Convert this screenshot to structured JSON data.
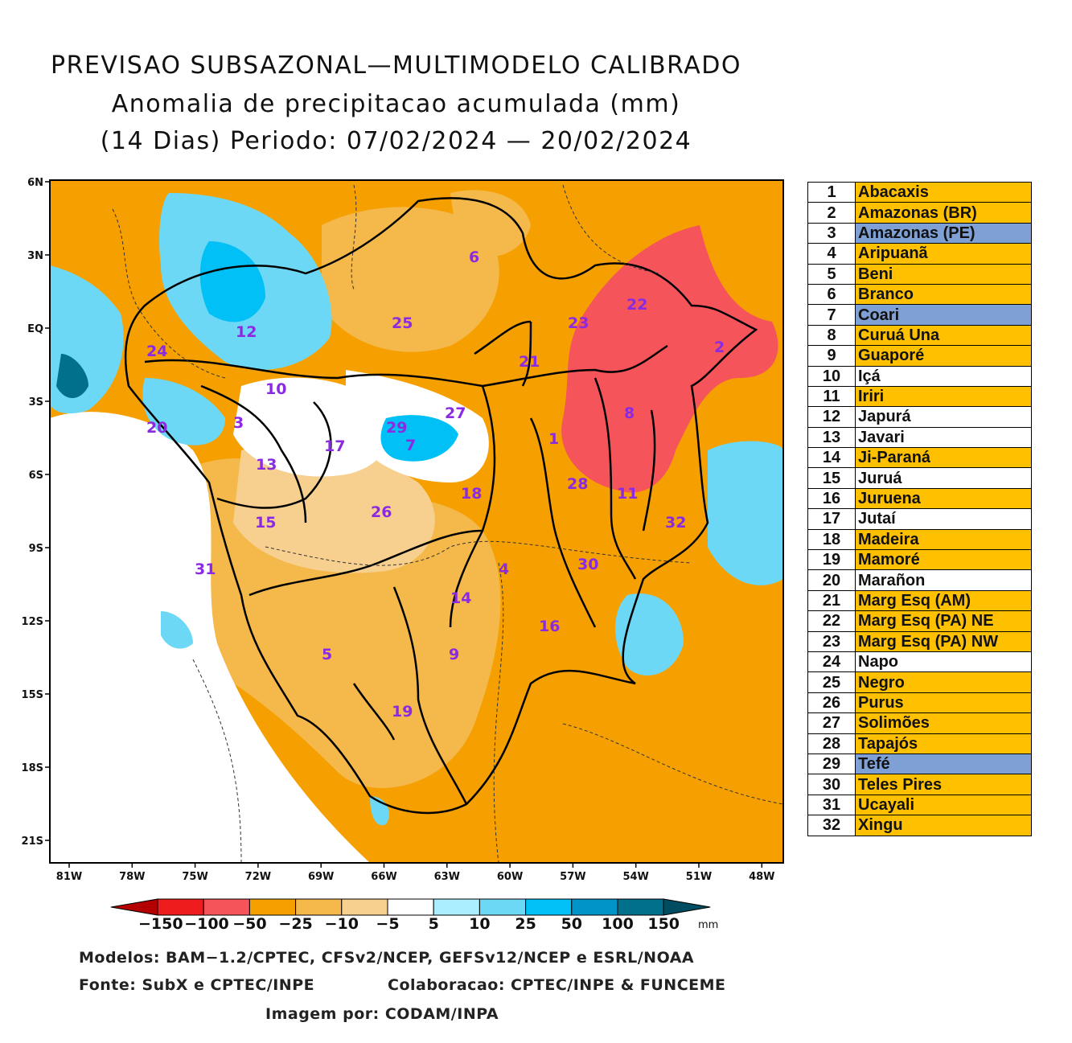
{
  "header": {
    "line1": "PREVISAO SUBSAZONAL—MULTIMODELO CALIBRADO",
    "line2": "Anomalia de precipitacao acumulada (mm)",
    "line3": "(14 Dias) Periodo: 07/02/2024 — 20/02/2024"
  },
  "axes": {
    "lat_labels": [
      "6N",
      "3N",
      "EQ",
      "3S",
      "6S",
      "9S",
      "12S",
      "15S",
      "18S",
      "21S"
    ],
    "lon_labels": [
      "81W",
      "78W",
      "75W",
      "72W",
      "69W",
      "66W",
      "63W",
      "60W",
      "57W",
      "54W",
      "51W",
      "48W"
    ]
  },
  "map_labels": [
    "1",
    "2",
    "3",
    "4",
    "5",
    "6",
    "7",
    "8",
    "9",
    "10",
    "11",
    "12",
    "13",
    "14",
    "15",
    "16",
    "17",
    "18",
    "19",
    "20",
    "21",
    "22",
    "23",
    "24",
    "25",
    "26",
    "27",
    "28",
    "29",
    "30",
    "31",
    "32"
  ],
  "legend": {
    "colors": {
      "orange": "#ffc000",
      "blue": "#7ea0d4",
      "white": "#ffffff"
    },
    "rows": [
      {
        "num": "1",
        "name": "Abacaxis",
        "color": "orange"
      },
      {
        "num": "2",
        "name": "Amazonas (BR)",
        "color": "orange"
      },
      {
        "num": "3",
        "name": "Amazonas (PE)",
        "color": "blue"
      },
      {
        "num": "4",
        "name": "Aripuanã",
        "color": "orange"
      },
      {
        "num": "5",
        "name": "Beni",
        "color": "orange"
      },
      {
        "num": "6",
        "name": "Branco",
        "color": "orange"
      },
      {
        "num": "7",
        "name": "Coari",
        "color": "blue"
      },
      {
        "num": "8",
        "name": "Curuá Una",
        "color": "orange"
      },
      {
        "num": "9",
        "name": "Guaporé",
        "color": "orange"
      },
      {
        "num": "10",
        "name": "Içá",
        "color": "white"
      },
      {
        "num": "11",
        "name": "Iriri",
        "color": "orange"
      },
      {
        "num": "12",
        "name": "Japurá",
        "color": "white"
      },
      {
        "num": "13",
        "name": "Javari",
        "color": "white"
      },
      {
        "num": "14",
        "name": "Ji-Paraná",
        "color": "orange"
      },
      {
        "num": "15",
        "name": "Juruá",
        "color": "white"
      },
      {
        "num": "16",
        "name": "Juruena",
        "color": "orange"
      },
      {
        "num": "17",
        "name": "Jutaí",
        "color": "white"
      },
      {
        "num": "18",
        "name": "Madeira",
        "color": "orange"
      },
      {
        "num": "19",
        "name": "Mamoré",
        "color": "orange"
      },
      {
        "num": "20",
        "name": "Marañon",
        "color": "white"
      },
      {
        "num": "21",
        "name": "Marg Esq (AM)",
        "color": "orange"
      },
      {
        "num": "22",
        "name": "Marg Esq (PA) NE",
        "color": "orange"
      },
      {
        "num": "23",
        "name": "Marg Esq (PA) NW",
        "color": "orange"
      },
      {
        "num": "24",
        "name": "Napo",
        "color": "white"
      },
      {
        "num": "25",
        "name": "Negro",
        "color": "orange"
      },
      {
        "num": "26",
        "name": "Purus",
        "color": "orange"
      },
      {
        "num": "27",
        "name": "Solimões",
        "color": "orange"
      },
      {
        "num": "28",
        "name": "Tapajós",
        "color": "orange"
      },
      {
        "num": "29",
        "name": "Tefé",
        "color": "blue"
      },
      {
        "num": "30",
        "name": "Teles Pires",
        "color": "orange"
      },
      {
        "num": "31",
        "name": "Ucayali",
        "color": "orange"
      },
      {
        "num": "32",
        "name": "Xingu",
        "color": "orange"
      }
    ]
  },
  "colorbar": {
    "unit": "mm",
    "ticks": [
      "−150",
      "−100",
      "−50",
      "−25",
      "−10",
      "−5",
      "5",
      "10",
      "25",
      "50",
      "100",
      "150"
    ],
    "colors": [
      "#b30000",
      "#ee1c1c",
      "#f5545a",
      "#f5a000",
      "#f5b84a",
      "#f7d090",
      "#ffffff",
      "#aaeeff",
      "#6dd8f5",
      "#00c0f5",
      "#0094c8",
      "#00708c",
      "#004c60"
    ]
  },
  "footer": {
    "line1": "Modelos: BAM−1.2/CPTEC, CFSv2/NCEP, GEFSv12/NCEP e ESRL/NOAA",
    "line2a": "Fonte: SubX e CPTEC/INPE",
    "line2b": "Colaboracao: CPTEC/INPE & FUNCEME",
    "line3": "Imagem por: CODAM/INPA"
  }
}
